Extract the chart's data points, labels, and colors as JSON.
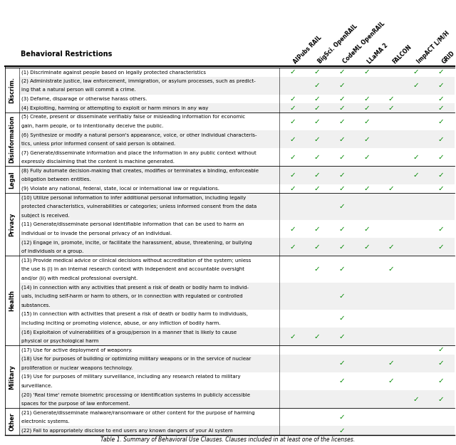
{
  "caption": "Table 1. Summary of Behavioral Use Clauses. Clauses included in at least one of the licenses.",
  "columns": [
    "AIPubs RAIL",
    "BigSci. OpenRAIL",
    "CodeML OpenRAIL",
    "LLaMA 2",
    "FALCON",
    "ImpACT L/M/H",
    "GRID"
  ],
  "category_labels": [
    "Discrim.",
    "Disinformation",
    "Legal",
    "Privacy",
    "Health",
    "Military",
    "Other"
  ],
  "categories": {
    "Discrim.": [
      1,
      2,
      3,
      4
    ],
    "Disinformation": [
      5,
      6,
      7
    ],
    "Legal": [
      8,
      9
    ],
    "Privacy": [
      10,
      11,
      12
    ],
    "Health": [
      13,
      14,
      15,
      16
    ],
    "Military": [
      17,
      18,
      19,
      20
    ],
    "Other": [
      21,
      22
    ]
  },
  "rows": [
    {
      "id": 1,
      "text": "(1) Discriminate against people based on legally protected characteristics",
      "checks": [
        true,
        true,
        true,
        true,
        false,
        true,
        true
      ]
    },
    {
      "id": 2,
      "text": "(2) Administrate justice, law enforcement, immigration, or asylum processes, such as predict-\ning that a natural person will commit a crime.",
      "checks": [
        false,
        true,
        true,
        false,
        false,
        true,
        true
      ]
    },
    {
      "id": 3,
      "text": "(3) Defame, disparage or otherwise harass others.",
      "checks": [
        true,
        true,
        true,
        true,
        true,
        false,
        true
      ]
    },
    {
      "id": 4,
      "text": "(4) Exploiting, harming or attempting to exploit or harm minors in any way",
      "checks": [
        true,
        true,
        true,
        true,
        true,
        false,
        true
      ]
    },
    {
      "id": 5,
      "text": "(5) Create, present or disseminate verifiably false or misleading information for economic\ngain, harm people, or to intentionally deceive the public.",
      "checks": [
        true,
        true,
        true,
        true,
        false,
        false,
        true
      ]
    },
    {
      "id": 6,
      "text": "(6) Synthesize or modify a natural person's appearance, voice, or other individual characteris-\ntics, unless prior informed consent of said person is obtained.",
      "checks": [
        true,
        true,
        true,
        true,
        false,
        false,
        true
      ]
    },
    {
      "id": 7,
      "text": "(7) Generate/disseminate information and place the information in any public context without\nexpressly disclaiming that the content is machine generated.",
      "checks": [
        true,
        true,
        true,
        true,
        false,
        true,
        true
      ]
    },
    {
      "id": 8,
      "text": "(8) Fully automate decision-making that creates, modifies or terminates a binding, enforceable\nobligation between entities.",
      "checks": [
        true,
        true,
        true,
        false,
        false,
        true,
        true
      ]
    },
    {
      "id": 9,
      "text": "(9) Violate any national, federal, state, local or international law or regulations.",
      "checks": [
        true,
        true,
        true,
        true,
        true,
        false,
        true
      ]
    },
    {
      "id": 10,
      "text": "(10) Utilize personal information to infer additional personal information, including legally\nprotected characteristics, vulnerabilities or categories; unless informed consent from the data\nsubject is received.",
      "checks": [
        false,
        false,
        true,
        false,
        false,
        false,
        false
      ]
    },
    {
      "id": 11,
      "text": "(11) Generate/disseminate personal identifiable information that can be used to harm an\nindividual or to invade the personal privacy of an individual.",
      "checks": [
        true,
        true,
        true,
        true,
        false,
        false,
        true
      ]
    },
    {
      "id": 12,
      "text": "(12) Engage in, promote, incite, or facilitate the harassment, abuse, threatening, or bullying\nof individuals or a group.",
      "checks": [
        true,
        true,
        true,
        true,
        true,
        false,
        true
      ]
    },
    {
      "id": 13,
      "text": "(13) Provide medical advice or clinical decisions without accreditation of the system; unless\nthe use is (i) in an internal research context with independent and accountable oversight\nand/or (ii) with medical professional oversight.",
      "checks": [
        false,
        true,
        true,
        false,
        true,
        false,
        false
      ]
    },
    {
      "id": 14,
      "text": "(14) In connection with any activities that present a risk of death or bodily harm to individ-\nuals, including self-harm or harm to others, or in connection with regulated or controlled\nsubstances.",
      "checks": [
        false,
        false,
        true,
        false,
        false,
        false,
        false
      ]
    },
    {
      "id": 15,
      "text": "(15) In connection with activities that present a risk of death or bodily harm to individuals,\nincluding inciting or promoting violence, abuse, or any infliction of bodily harm.",
      "checks": [
        false,
        false,
        true,
        false,
        false,
        false,
        false
      ]
    },
    {
      "id": 16,
      "text": "(16) Exploitaion of vulnerabilities of a group/person in a manner that is likely to cause\nphysical or psychological harm",
      "checks": [
        true,
        true,
        true,
        false,
        false,
        false,
        false
      ]
    },
    {
      "id": 17,
      "text": "(17) Use for active deployment of weaponry.",
      "checks": [
        false,
        false,
        false,
        false,
        false,
        false,
        true
      ]
    },
    {
      "id": 18,
      "text": "(18) Use for purposes of building or optimizing military weapons or in the service of nuclear\nproliferation or nuclear weapons technology.",
      "checks": [
        false,
        false,
        true,
        false,
        true,
        false,
        true
      ]
    },
    {
      "id": 19,
      "text": "(19) Use for purposes of military surveillance, including any research related to military\nsurveillance.",
      "checks": [
        false,
        false,
        true,
        false,
        true,
        false,
        true
      ]
    },
    {
      "id": 20,
      "text": "(20) 'Real time' remote biometric processing or identification systems in publicly accessible\nspaces for the purpose of law enforcement.",
      "checks": [
        false,
        false,
        false,
        false,
        false,
        true,
        true
      ]
    },
    {
      "id": 21,
      "text": "(21) Generate/disseminate malware/ransomware or other content for the purpose of harming\nelectronic systems.",
      "checks": [
        false,
        false,
        true,
        false,
        false,
        false,
        false
      ]
    },
    {
      "id": 22,
      "text": "(22) Fail to appropriately disclose to end users any known dangers of your AI system",
      "checks": [
        false,
        false,
        true,
        false,
        false,
        false,
        false
      ]
    }
  ],
  "check_color": "#008800",
  "header_text": "Behavioral Restrictions",
  "bg_color": "#ffffff"
}
